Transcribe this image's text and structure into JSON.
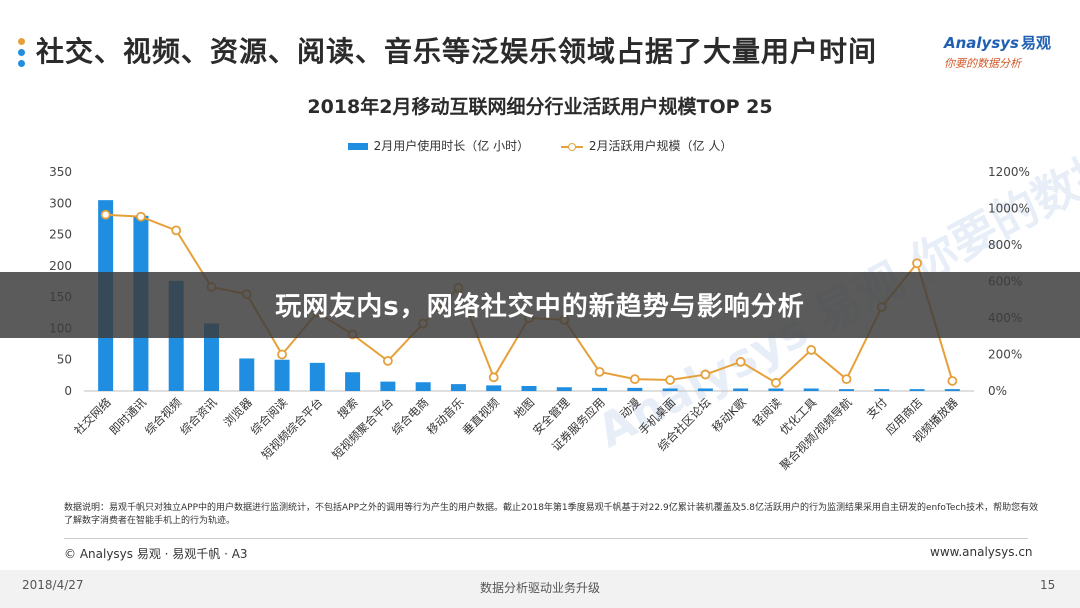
{
  "slide": {
    "headline": "社交、视频、资源、阅读、音乐等泛娱乐领域占据了大量用户时间",
    "logo": {
      "en": "Analysys",
      "cn": "易观",
      "sub": "你要的数据分析"
    },
    "overlay_title": "玩网友内s，网络社交中的新趋势与影响分析",
    "watermark": "Analysys 易观 你要的数据分析",
    "note": "数据说明：易观千帆只对独立APP中的用户数据进行监测统计，不包括APP之外的调用等行为产生的用户数据。截止2018年第1季度易观千帆基于对22.9亿累计装机覆盖及5.8亿活跃用户的行为监测结果采用自主研发的enfoTech技术，帮助您有效了解数字消费者在智能手机上的行为轨迹。",
    "copyright": "© Analysys 易观 · 易观千帆 · A3",
    "website": "www.analysys.cn",
    "date": "2018/4/27",
    "caption": "数据分析驱动业务升级",
    "page": "15",
    "colors": {
      "bar": "#1f8de0",
      "line": "#e6a03a",
      "bullets": [
        "#e6a03a",
        "#1f8de0",
        "#1f8de0"
      ]
    }
  },
  "chart_data": {
    "type": "bar",
    "title": "2018年2月移动互联网细分行业活跃用户规模TOP 25",
    "categories": [
      "社交网络",
      "即时通讯",
      "综合视频",
      "综合资讯",
      "浏览器",
      "综合阅读",
      "短视频综合平台",
      "搜索",
      "短视频聚合平台",
      "综合电商",
      "移动音乐",
      "垂直视频",
      "地图",
      "安全管理",
      "证券服务应用",
      "动漫",
      "手机桌面",
      "综合社区论坛",
      "移动K歌",
      "轻阅读",
      "优化工具",
      "聚合视频/视频导航",
      "支付",
      "应用商店",
      "视频播放器"
    ],
    "series": [
      {
        "name": "2月用户使用时长（亿 小时）",
        "type": "bar",
        "axis": "left",
        "values": [
          305,
          280,
          176,
          108,
          52,
          50,
          45,
          30,
          15,
          14,
          11,
          9,
          8,
          6,
          5,
          5,
          4,
          4,
          4,
          4,
          4,
          3,
          3,
          3,
          3
        ]
      },
      {
        "name": "2月活跃用户规模（亿 人）",
        "type": "line",
        "axis": "right",
        "values": [
          966,
          955,
          880,
          570,
          530,
          200,
          430,
          310,
          165,
          370,
          565,
          75,
          400,
          390,
          105,
          65,
          60,
          90,
          160,
          45,
          225,
          65,
          460,
          700,
          55
        ]
      }
    ],
    "y_left": {
      "min": 0,
      "max": 350,
      "ticks": [
        0,
        50,
        100,
        150,
        200,
        250,
        300,
        350
      ]
    },
    "y_right": {
      "min": 0,
      "max": 1200,
      "ticks": [
        "0%",
        "200%",
        "400%",
        "600%",
        "800%",
        "1000%",
        "1200%"
      ]
    },
    "legend_position": "top",
    "grid": false
  }
}
